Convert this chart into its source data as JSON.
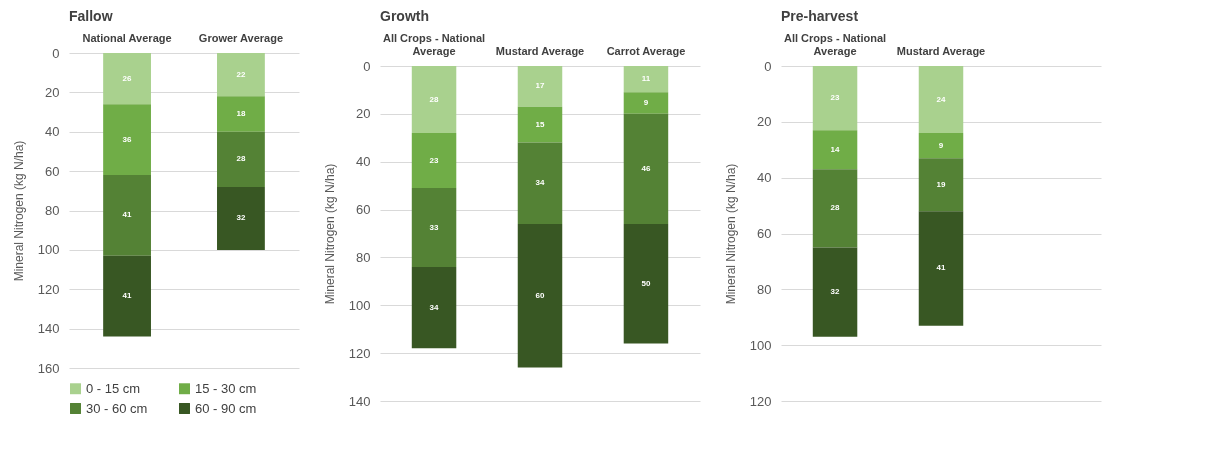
{
  "chart_data": [
    {
      "type": "bar",
      "title": "Fallow",
      "ylabel": "Mineral Nitrogen (kg N/ha)",
      "categories": [
        "National Average",
        "Grower Average"
      ],
      "stacked": true,
      "ylim": [
        160,
        0
      ],
      "yticks": [
        0,
        20,
        40,
        60,
        80,
        100,
        120,
        140,
        160
      ],
      "grid": "y",
      "legend": "bottom",
      "data_labels": true,
      "series": [
        {
          "name": "0 - 15 cm",
          "color": "#a9d18e",
          "values": [
            26,
            22
          ]
        },
        {
          "name": "15 - 30 cm",
          "color": "#70ad47",
          "values": [
            36,
            18
          ]
        },
        {
          "name": "30 - 60 cm",
          "color": "#548235",
          "values": [
            41,
            28
          ]
        },
        {
          "name": "60 - 90 cm",
          "color": "#385723",
          "values": [
            41,
            32
          ]
        }
      ]
    },
    {
      "type": "bar",
      "title": "Growth",
      "ylabel": "Mineral Nitrogen (kg N/ha)",
      "categories": [
        "All Crops - National Average",
        "Mustard Average",
        "Carrot Average"
      ],
      "stacked": true,
      "ylim": [
        140,
        0
      ],
      "yticks": [
        0,
        20,
        40,
        60,
        80,
        100,
        120,
        140
      ],
      "grid": "y",
      "data_labels": true,
      "series": [
        {
          "color": "#a9d18e",
          "values": [
            28,
            17,
            11
          ]
        },
        {
          "color": "#70ad47",
          "values": [
            23,
            15,
            9
          ]
        },
        {
          "color": "#548235",
          "values": [
            33,
            34,
            46
          ]
        },
        {
          "color": "#385723",
          "values": [
            34,
            60,
            50
          ]
        }
      ]
    },
    {
      "type": "bar",
      "title": "Pre-harvest",
      "ylabel": "Mineral Nitrogen (kg N/ha)",
      "categories": [
        "All Crops - National Average",
        "Mustard Average",
        null
      ],
      "stacked": true,
      "ylim": [
        120,
        0
      ],
      "yticks": [
        0,
        20,
        40,
        60,
        80,
        100,
        120
      ],
      "grid": "y",
      "data_labels": true,
      "series": [
        {
          "color": "#a9d18e",
          "values": [
            23,
            24,
            null
          ]
        },
        {
          "color": "#70ad47",
          "values": [
            14,
            9,
            null
          ]
        },
        {
          "color": "#548235",
          "values": [
            28,
            19,
            null
          ]
        },
        {
          "color": "#385723",
          "values": [
            32,
            41,
            null
          ]
        }
      ]
    }
  ]
}
